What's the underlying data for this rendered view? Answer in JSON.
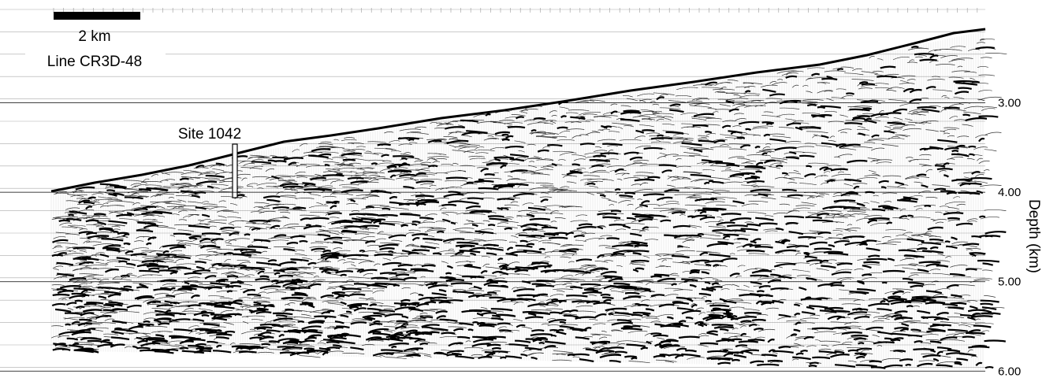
{
  "figure": {
    "scale_bar_label": "2 km",
    "line_label": "Line CR3D-48",
    "site_label": "Site 1042",
    "depth_axis": {
      "label": "Depth (km)",
      "ylim": [
        1.85,
        6.2
      ],
      "ticks": [
        {
          "value": 3,
          "label": "3.00"
        },
        {
          "value": 4,
          "label": "4.00"
        },
        {
          "value": 5,
          "label": "5.00"
        },
        {
          "value": 6,
          "label": "6.00"
        }
      ]
    }
  }
}
